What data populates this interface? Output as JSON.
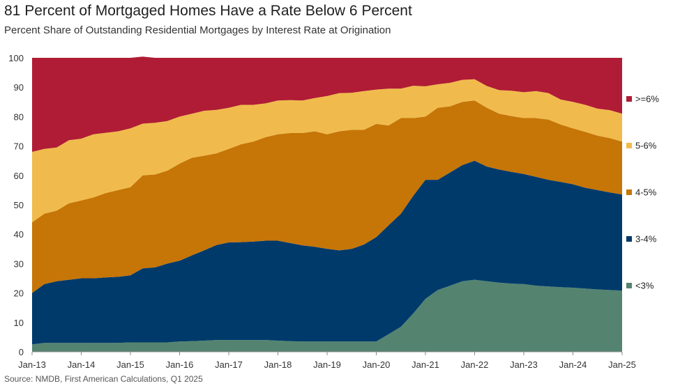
{
  "title": "81 Percent of Mortgaged Homes Have a Rate Below 6 Percent",
  "subtitle": "Percent Share of Outstanding Residential Mortgages by Interest Rate at Origination",
  "source": "Source: NMDB, First American Calculations, Q1 2025",
  "chart_data": {
    "type": "area",
    "stacked": true,
    "ylim": [
      0,
      100
    ],
    "yticks": [
      "0",
      "10",
      "20",
      "30",
      "40",
      "50",
      "60",
      "70",
      "80",
      "90",
      "100"
    ],
    "xtick_labels": [
      "Jan-13",
      "Jan-14",
      "Jan-15",
      "Jan-16",
      "Jan-17",
      "Jan-18",
      "Jan-19",
      "Jan-20",
      "Jan-21",
      "Jan-22",
      "Jan-23",
      "Jan-24",
      "Jan-25"
    ],
    "x": [
      2013.0,
      2013.25,
      2013.5,
      2013.75,
      2014.0,
      2014.25,
      2014.5,
      2014.75,
      2015.0,
      2015.25,
      2015.5,
      2015.75,
      2016.0,
      2016.25,
      2016.5,
      2016.75,
      2017.0,
      2017.25,
      2017.5,
      2017.75,
      2018.0,
      2018.25,
      2018.5,
      2018.75,
      2019.0,
      2019.25,
      2019.5,
      2019.75,
      2020.0,
      2020.25,
      2020.5,
      2020.75,
      2021.0,
      2021.25,
      2021.5,
      2021.75,
      2022.0,
      2022.25,
      2022.5,
      2022.75,
      2023.0,
      2023.25,
      2023.5,
      2023.75,
      2024.0,
      2024.25,
      2024.5,
      2024.75,
      2025.0
    ],
    "legend_position": "right",
    "series": [
      {
        "name": "<3%",
        "color": "#548470",
        "values": [
          2.5,
          3,
          3,
          3,
          3,
          3,
          3,
          3,
          3.2,
          3.2,
          3.2,
          3.2,
          3.5,
          3.6,
          3.8,
          4,
          4,
          4,
          4,
          4,
          3.8,
          3.6,
          3.5,
          3.5,
          3.5,
          3.5,
          3.5,
          3.5,
          3.5,
          6,
          8.5,
          13,
          18,
          21,
          22.5,
          24,
          24.5,
          24,
          23.5,
          23.2,
          23,
          22.5,
          22.2,
          22,
          21.8,
          21.5,
          21.2,
          21,
          20.8
        ]
      },
      {
        "name": "3-4%",
        "color": "#003a6b",
        "values": [
          17.5,
          20,
          21,
          21.5,
          22,
          22,
          22.3,
          22.5,
          22.8,
          25.2,
          25.5,
          26.8,
          27.5,
          29.2,
          30.7,
          32.3,
          33.2,
          33.3,
          33.5,
          33.8,
          34,
          33.4,
          32.7,
          32.2,
          31.5,
          31,
          31.5,
          33,
          35.5,
          37,
          38.5,
          40,
          40.5,
          37.5,
          38.5,
          39.5,
          40.5,
          39,
          38.5,
          38,
          37.5,
          37,
          36.3,
          35.8,
          35.2,
          34.3,
          33.8,
          33.2,
          32.7
        ]
      },
      {
        "name": "4-5%",
        "color": "#c67507",
        "values": [
          24,
          24,
          24,
          26,
          26.5,
          27.5,
          28.7,
          29.5,
          30,
          31.6,
          31.6,
          31.6,
          33,
          33.2,
          32.2,
          31.2,
          31.8,
          33.3,
          34,
          35.2,
          36.2,
          37.4,
          38.2,
          39.3,
          39,
          40.5,
          40.5,
          39,
          38.5,
          34,
          32.5,
          26.5,
          21.5,
          24.5,
          22.5,
          21.5,
          20.5,
          20,
          19,
          19,
          19,
          20,
          20.5,
          19.5,
          19,
          19,
          18.5,
          18.5,
          18
        ]
      },
      {
        "name": "5-6%",
        "color": "#f0bb4c",
        "values": [
          24,
          22,
          21.5,
          21.5,
          21,
          21.5,
          20.5,
          20,
          20,
          17.6,
          17.6,
          16.9,
          16,
          15,
          15.3,
          14.8,
          14,
          13.4,
          12.5,
          11.5,
          11.5,
          11.2,
          11.1,
          11.3,
          13,
          13,
          12.6,
          13.2,
          11.7,
          12.5,
          10,
          11,
          10.3,
          8,
          8,
          7.5,
          7.2,
          7.4,
          8,
          8.6,
          8.8,
          9.2,
          9,
          8.5,
          9,
          9.2,
          9.2,
          9.5,
          9.5
        ]
      },
      {
        "name": ">=6%",
        "color": "#b01c35",
        "values": [
          32,
          31,
          30.5,
          28,
          27.5,
          26,
          25.5,
          25,
          24,
          22.8,
          22.1,
          21.5,
          20,
          19,
          18,
          17.7,
          17,
          16,
          16,
          15.5,
          14.5,
          14.4,
          14.5,
          13.7,
          13,
          12,
          11.9,
          11.3,
          10.8,
          10.5,
          10.5,
          9.5,
          9.7,
          9,
          8.5,
          7.5,
          7.3,
          9.6,
          11,
          11.2,
          11.7,
          11.3,
          12,
          14.2,
          15,
          16,
          17.3,
          17.8,
          19
        ]
      }
    ]
  }
}
